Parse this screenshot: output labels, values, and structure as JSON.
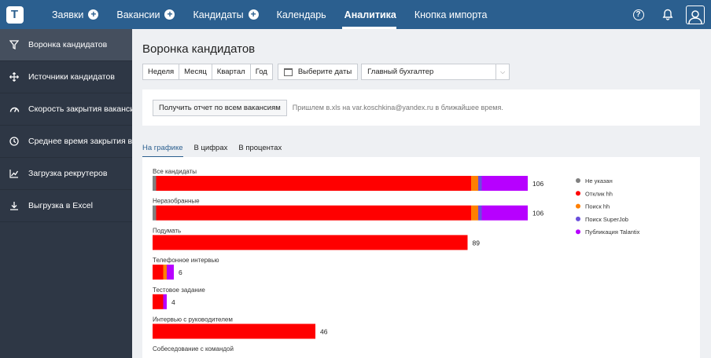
{
  "nav": {
    "logo": "T",
    "items": [
      {
        "label": "Заявки",
        "plus": true
      },
      {
        "label": "Вакансии",
        "plus": true
      },
      {
        "label": "Кандидаты",
        "plus": true
      },
      {
        "label": "Календарь",
        "plus": false
      },
      {
        "label": "Аналитика",
        "plus": false,
        "active": true
      },
      {
        "label": "Кнопка импорта",
        "plus": false
      }
    ],
    "help": "?"
  },
  "sidebar": {
    "items": [
      {
        "label": "Воронка кандидатов",
        "icon": "filter-icon",
        "active": true
      },
      {
        "label": "Источники кандидатов",
        "icon": "arrows-icon"
      },
      {
        "label": "Скорость закрытия вакансий",
        "icon": "speedometer-icon"
      },
      {
        "label": "Среднее время закрытия вак...",
        "icon": "clock-icon"
      },
      {
        "label": "Загрузка рекрутеров",
        "icon": "line-chart-icon"
      },
      {
        "label": "Выгрузка в Excel",
        "icon": "download-icon"
      }
    ]
  },
  "page": {
    "title": "Воронка кандидатов",
    "periods": [
      "Неделя",
      "Месяц",
      "Квартал",
      "Год"
    ],
    "date_button": "Выберите даты",
    "select_value": "Главный бухгалтер",
    "report_button": "Получить отчет по всем вакансиям",
    "report_note": "Пришлем в.xls на var.koschkina@yandex.ru в ближайшее время.",
    "tabs": [
      "На графике",
      "В цифрах",
      "В процентах"
    ]
  },
  "chart_data": {
    "type": "bar",
    "orientation": "horizontal",
    "stacked": true,
    "categories": [
      "Все кандидаты",
      "Неразобранные",
      "Подумать",
      "Телефонное интервью",
      "Тестовое задание",
      "Интервью с руководителем",
      "Собеседование с командой"
    ],
    "totals": [
      106,
      106,
      89,
      6,
      4,
      46,
      null
    ],
    "series": [
      {
        "name": "Не указан",
        "color": "#808080",
        "values": [
          1,
          1,
          0,
          0,
          0,
          0,
          0
        ]
      },
      {
        "name": "Отклик hh",
        "color": "#ff0000",
        "values": [
          89,
          89,
          89,
          3,
          3,
          46,
          0
        ]
      },
      {
        "name": "Поиск hh",
        "color": "#ff7f00",
        "values": [
          2,
          2,
          0,
          1,
          0,
          0,
          0
        ]
      },
      {
        "name": "Поиск SuperJob",
        "color": "#6a4fdb",
        "values": [
          1,
          1,
          0,
          0,
          0,
          0,
          0
        ]
      },
      {
        "name": "Публикация Talantix",
        "color": "#b700ff",
        "values": [
          13,
          13,
          0,
          2,
          1,
          0,
          0
        ]
      }
    ],
    "xlim": [
      0,
      106
    ],
    "legend_position": "right"
  }
}
